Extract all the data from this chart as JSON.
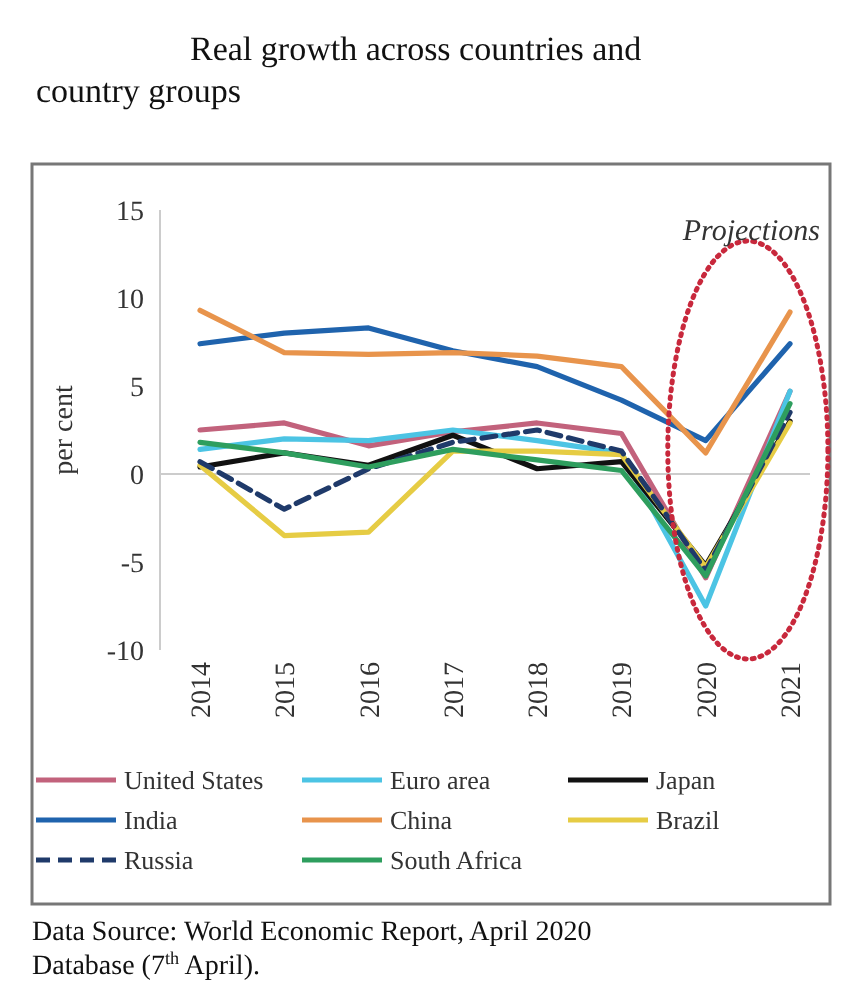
{
  "chart_data": {
    "type": "line",
    "title": "Real growth across countries and country groups",
    "ylabel": "per cent",
    "categories": [
      "2014",
      "2015",
      "2016",
      "2017",
      "2018",
      "2019",
      "2020",
      "2021"
    ],
    "series": [
      {
        "name": "United States",
        "color": "#c2627c",
        "values": [
          2.5,
          2.9,
          1.6,
          2.4,
          2.9,
          2.3,
          -5.9,
          4.7
        ]
      },
      {
        "name": "Euro area",
        "color": "#4cc4e4",
        "values": [
          1.4,
          2.0,
          1.9,
          2.5,
          1.9,
          1.2,
          -7.5,
          4.7
        ]
      },
      {
        "name": "Japan",
        "color": "#111111",
        "values": [
          0.4,
          1.2,
          0.5,
          2.2,
          0.3,
          0.7,
          -5.2,
          3.0
        ]
      },
      {
        "name": "India",
        "color": "#1f63ad",
        "values": [
          7.4,
          8.0,
          8.3,
          7.0,
          6.1,
          4.2,
          1.9,
          7.4
        ]
      },
      {
        "name": "China",
        "color": "#e8944c",
        "values": [
          9.3,
          6.9,
          6.8,
          6.9,
          6.7,
          6.1,
          1.2,
          9.2
        ]
      },
      {
        "name": "Brazil",
        "color": "#e6cc44",
        "values": [
          0.5,
          -3.5,
          -3.3,
          1.3,
          1.3,
          1.1,
          -5.3,
          2.9
        ]
      },
      {
        "name": "Russia",
        "color": "#1f3a6a",
        "line_style": "dashed",
        "values": [
          0.7,
          -2.0,
          0.3,
          1.8,
          2.5,
          1.3,
          -5.5,
          3.5
        ]
      },
      {
        "name": "South Africa",
        "color": "#2e9e5e",
        "values": [
          1.8,
          1.2,
          0.4,
          1.4,
          0.8,
          0.2,
          -5.8,
          4.0
        ]
      }
    ],
    "ylim": [
      -10,
      15
    ],
    "yticks": [
      -10,
      -5,
      0,
      5,
      10,
      15
    ],
    "grid": false,
    "legend": "bottom",
    "ref_lines": [
      {
        "axis": "y",
        "value": 0,
        "color": "#cccccc"
      }
    ],
    "line_style": "solid",
    "annotations": [
      "Projections",
      "Data Source: World Economic Report, April 2020 Database (7$^{th}$ April)."
    ]
  }
}
